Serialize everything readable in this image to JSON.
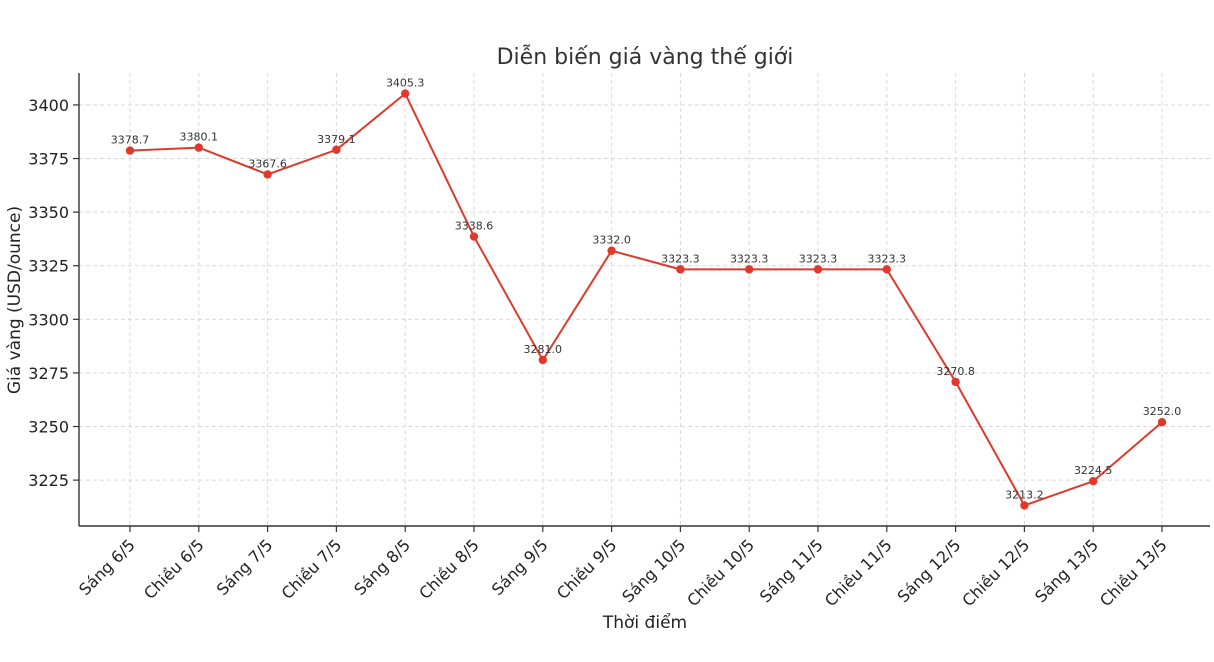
{
  "chart_data": {
    "type": "line",
    "title": "Diễn biến giá vàng thế giới",
    "xlabel": "Thời điểm",
    "ylabel": "Giá vàng (USD/ounce)",
    "categories": [
      "Sáng 6/5",
      "Chiều 6/5",
      "Sáng 7/5",
      "Chiều 7/5",
      "Sáng 8/5",
      "Chiều 8/5",
      "Sáng 9/5",
      "Chiều 9/5",
      "Sáng 10/5",
      "Chiều 10/5",
      "Sáng 11/5",
      "Chiều 11/5",
      "Sáng 12/5",
      "Chiều 12/5",
      "Sáng 13/5",
      "Chiều 13/5"
    ],
    "values": [
      3378.7,
      3380.1,
      3367.6,
      3379.1,
      3405.3,
      3338.6,
      3281.0,
      3332.0,
      3323.3,
      3323.3,
      3323.3,
      3323.3,
      3270.8,
      3213.2,
      3224.5,
      3252.0
    ],
    "data_labels": [
      "3378.7",
      "3380.1",
      "3367.6",
      "3379.1",
      "3405.3",
      "3338.6",
      "3281.0",
      "3332.0",
      "3323.3",
      "3323.3",
      "3323.3",
      "3323.3",
      "3270.8",
      "3213.2",
      "3224.5",
      "3252.0"
    ],
    "yticks": [
      3225,
      3250,
      3275,
      3300,
      3325,
      3350,
      3375,
      3400
    ],
    "ylim": [
      3203.6,
      3414.9
    ],
    "grid": true,
    "line_color": "#e0392b",
    "marker_color": "#e0392b"
  }
}
